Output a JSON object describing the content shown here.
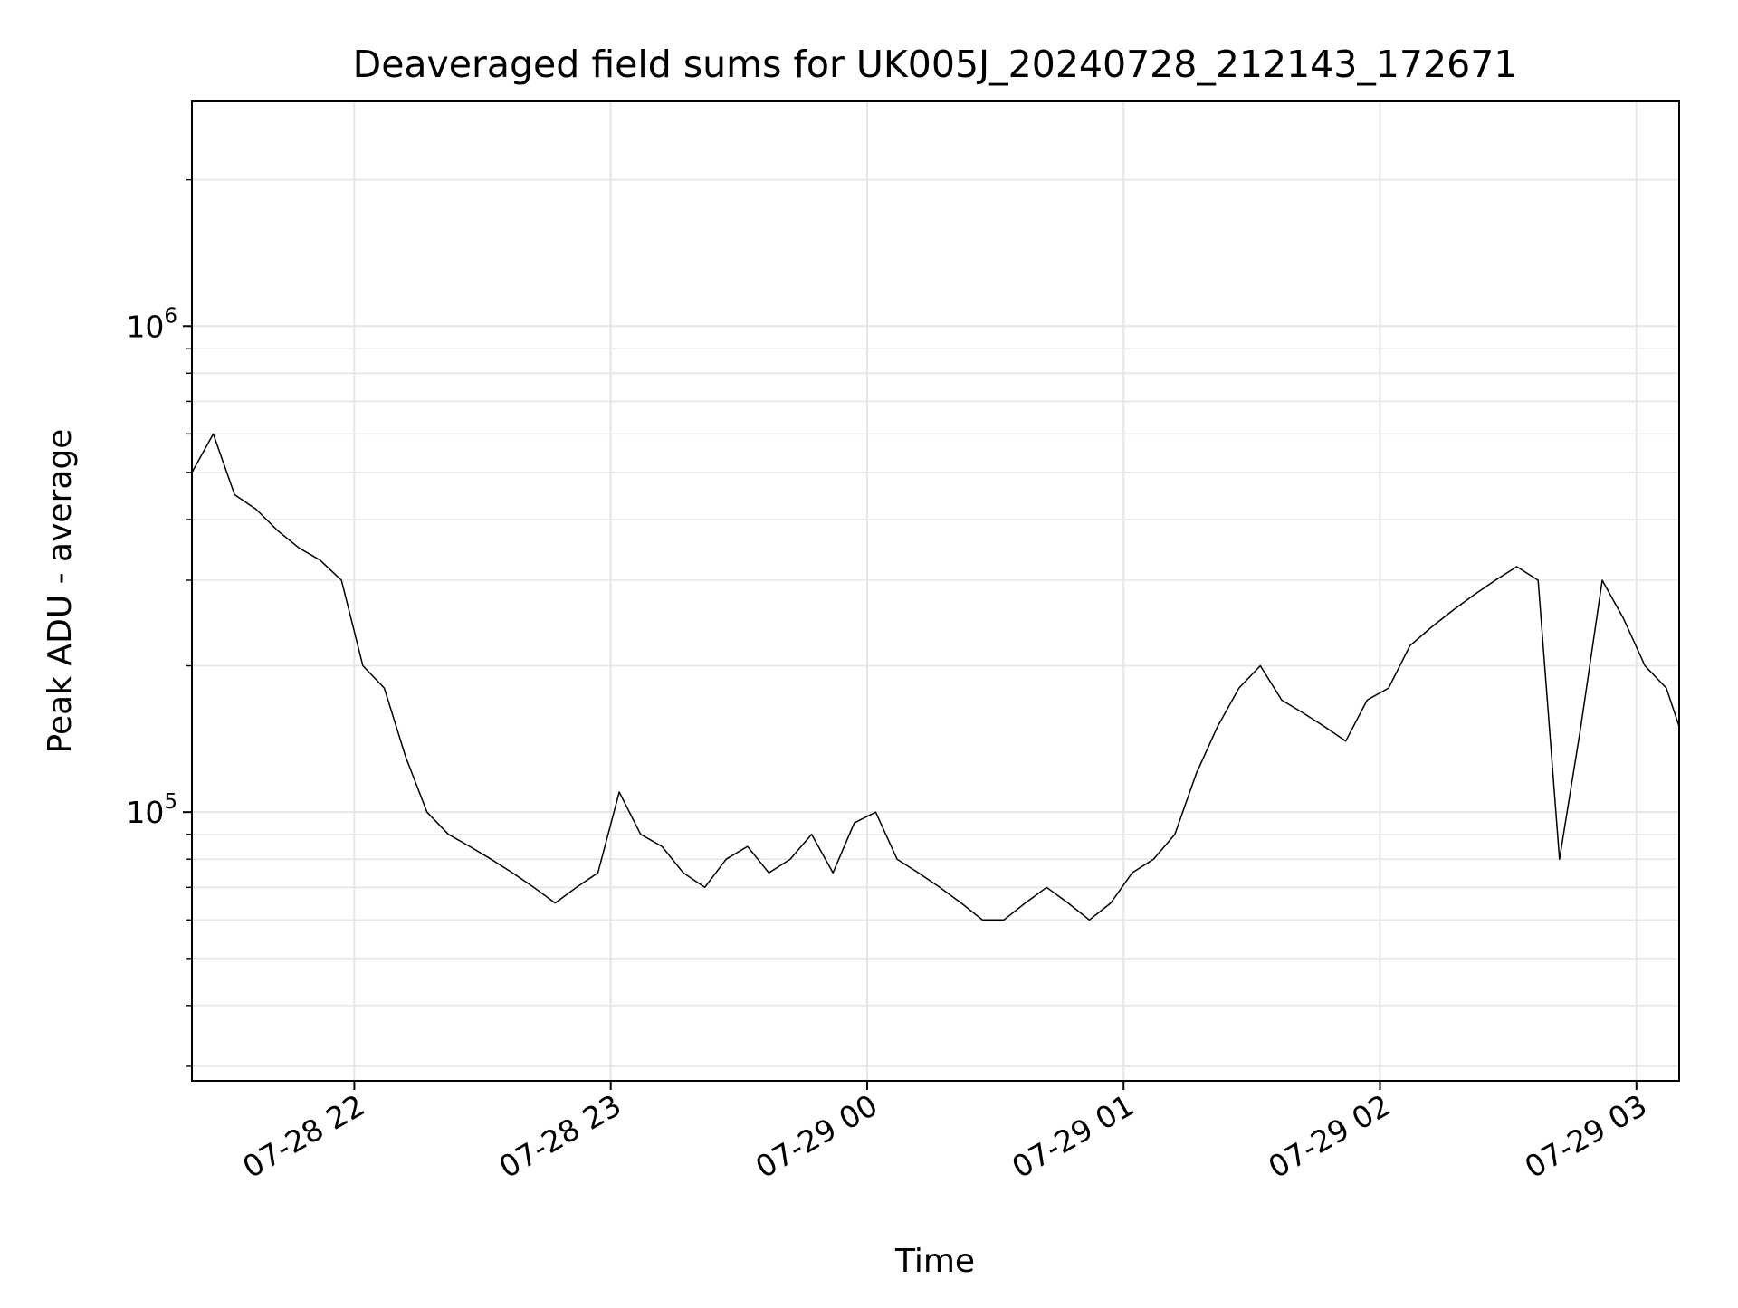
{
  "chart_data": {
    "type": "line",
    "title": "Deaveraged field sums for UK005J_20240728_212143_172671",
    "xlabel": "Time",
    "ylabel": "Peak ADU - average",
    "yscale": "log",
    "xlim": [
      "2024-07-28 21:22",
      "2024-07-29 03:10"
    ],
    "ylim": [
      28000,
      2900000
    ],
    "x_ticks": [
      {
        "value": "2024-07-28 22:00",
        "label": "07-28 22"
      },
      {
        "value": "2024-07-28 23:00",
        "label": "07-28 23"
      },
      {
        "value": "2024-07-29 00:00",
        "label": "07-29 00"
      },
      {
        "value": "2024-07-29 01:00",
        "label": "07-29 01"
      },
      {
        "value": "2024-07-29 02:00",
        "label": "07-29 02"
      },
      {
        "value": "2024-07-29 03:00",
        "label": "07-29 03"
      }
    ],
    "y_ticks": [
      {
        "value": 100000,
        "base": "10",
        "exp": "5"
      },
      {
        "value": 1000000,
        "base": "10",
        "exp": "6"
      }
    ],
    "grid": true,
    "legend": "none",
    "line_color": "#000000",
    "series": [
      {
        "name": "",
        "x": [
          "2024-07-28 21:22",
          "2024-07-28 21:27",
          "2024-07-28 21:32",
          "2024-07-28 21:37",
          "2024-07-28 21:42",
          "2024-07-28 21:47",
          "2024-07-28 21:52",
          "2024-07-28 21:57",
          "2024-07-28 22:02",
          "2024-07-28 22:07",
          "2024-07-28 22:12",
          "2024-07-28 22:17",
          "2024-07-28 22:22",
          "2024-07-28 22:27",
          "2024-07-28 22:32",
          "2024-07-28 22:37",
          "2024-07-28 22:42",
          "2024-07-28 22:47",
          "2024-07-28 22:52",
          "2024-07-28 22:57",
          "2024-07-28 23:02",
          "2024-07-28 23:07",
          "2024-07-28 23:12",
          "2024-07-28 23:17",
          "2024-07-28 23:22",
          "2024-07-28 23:27",
          "2024-07-28 23:32",
          "2024-07-28 23:37",
          "2024-07-28 23:42",
          "2024-07-28 23:47",
          "2024-07-28 23:52",
          "2024-07-28 23:57",
          "2024-07-29 00:02",
          "2024-07-29 00:07",
          "2024-07-29 00:12",
          "2024-07-29 00:17",
          "2024-07-29 00:22",
          "2024-07-29 00:27",
          "2024-07-29 00:32",
          "2024-07-29 00:37",
          "2024-07-29 00:42",
          "2024-07-29 00:47",
          "2024-07-29 00:52",
          "2024-07-29 00:57",
          "2024-07-29 01:02",
          "2024-07-29 01:07",
          "2024-07-29 01:12",
          "2024-07-29 01:17",
          "2024-07-29 01:22",
          "2024-07-29 01:27",
          "2024-07-29 01:32",
          "2024-07-29 01:37",
          "2024-07-29 01:42",
          "2024-07-29 01:47",
          "2024-07-29 01:52",
          "2024-07-29 01:57",
          "2024-07-29 02:02",
          "2024-07-29 02:07",
          "2024-07-29 02:12",
          "2024-07-29 02:17",
          "2024-07-29 02:22",
          "2024-07-29 02:27",
          "2024-07-29 02:32",
          "2024-07-29 02:37",
          "2024-07-29 02:42",
          "2024-07-29 02:47",
          "2024-07-29 02:52",
          "2024-07-29 02:57",
          "2024-07-29 03:02",
          "2024-07-29 03:07",
          "2024-07-29 03:10"
        ],
        "values": [
          500000,
          600000,
          450000,
          420000,
          380000,
          350000,
          330000,
          300000,
          200000,
          180000,
          130000,
          100000,
          90000,
          85000,
          80000,
          75000,
          70000,
          65000,
          70000,
          75000,
          110000,
          90000,
          85000,
          75000,
          70000,
          80000,
          85000,
          75000,
          80000,
          90000,
          75000,
          95000,
          100000,
          80000,
          75000,
          70000,
          65000,
          60000,
          60000,
          65000,
          70000,
          65000,
          60000,
          65000,
          75000,
          80000,
          90000,
          120000,
          150000,
          180000,
          200000,
          170000,
          160000,
          150000,
          140000,
          170000,
          180000,
          220000,
          240000,
          260000,
          280000,
          300000,
          320000,
          300000,
          80000,
          150000,
          300000,
          250000,
          200000,
          180000,
          150000
        ]
      }
    ]
  }
}
